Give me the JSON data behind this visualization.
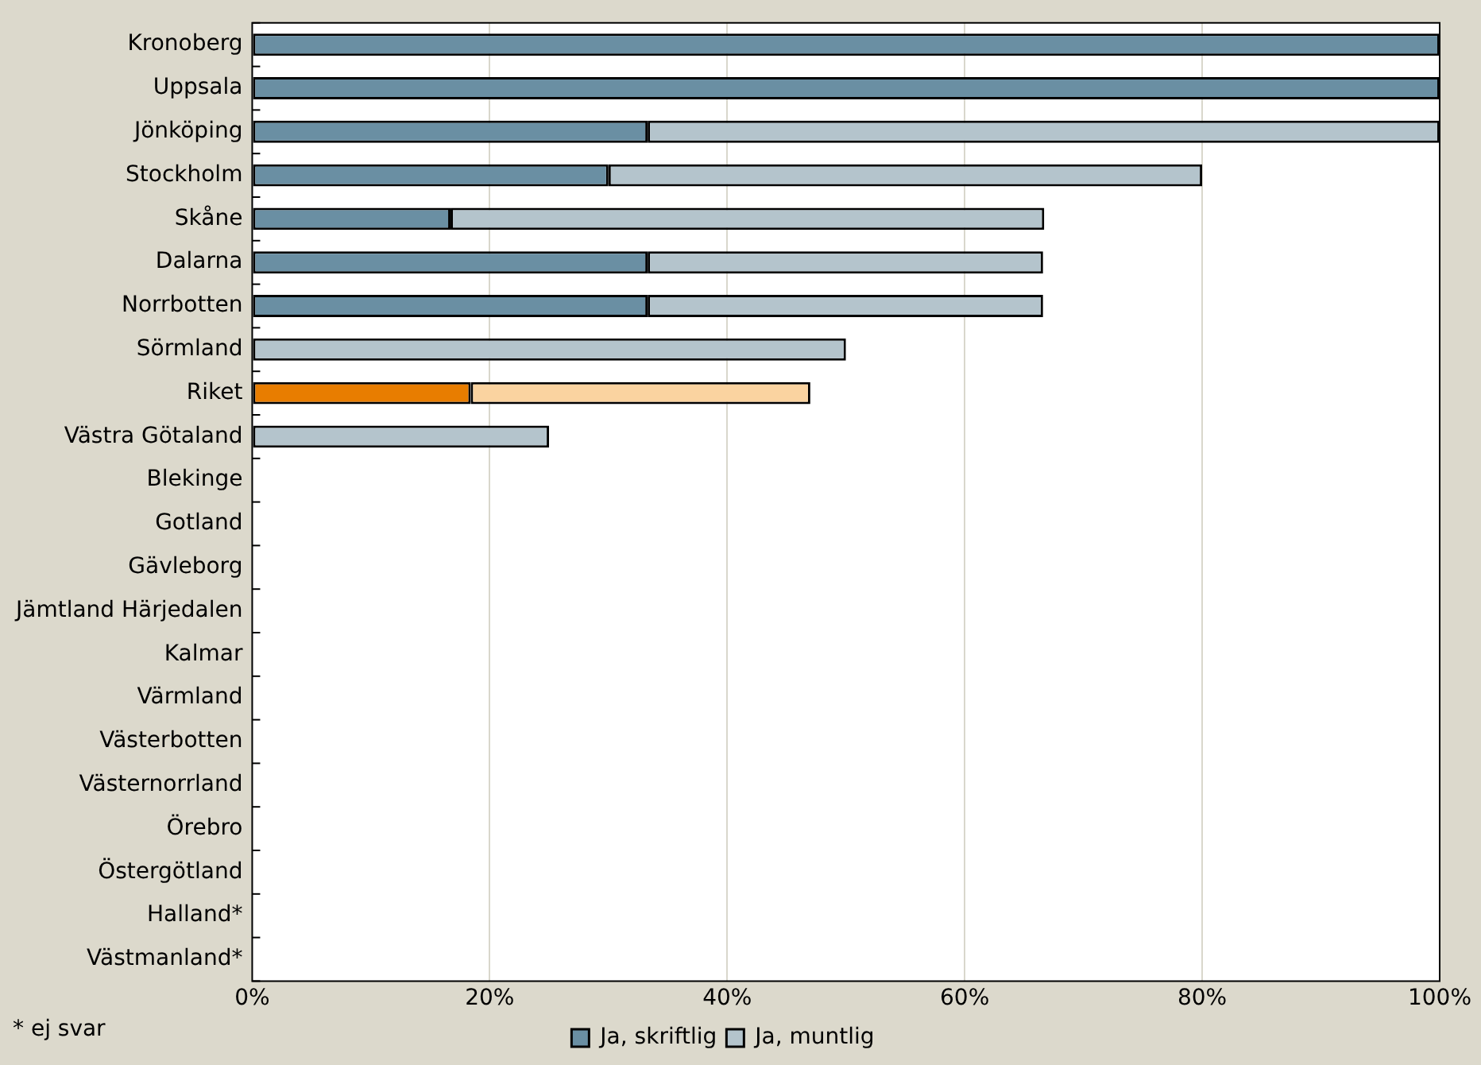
{
  "chart_data": {
    "type": "bar",
    "orientation": "horizontal",
    "stacked": true,
    "categories": [
      "Kronoberg",
      "Uppsala",
      "Jönköping",
      "Stockholm",
      "Skåne",
      "Dalarna",
      "Norrbotten",
      "Sörmland",
      "Riket",
      "Västra Götaland",
      "Blekinge",
      "Gotland",
      "Gävleborg",
      "Jämtland Härjedalen",
      "Kalmar",
      "Värmland",
      "Västerbotten",
      "Västernorrland",
      "Örebro",
      "Östergötland",
      "Halland*",
      "Västmanland*"
    ],
    "series": [
      {
        "name": "Ja, skriftlig",
        "color": "#6a8fa3",
        "colors": [
          "#6a8fa3",
          "#6a8fa3",
          "#6a8fa3",
          "#6a8fa3",
          "#6a8fa3",
          "#6a8fa3",
          "#6a8fa3",
          "#6a8fa3",
          "#e87d00",
          "#6a8fa3",
          "#6a8fa3",
          "#6a8fa3",
          "#6a8fa3",
          "#6a8fa3",
          "#6a8fa3",
          "#6a8fa3",
          "#6a8fa3",
          "#6a8fa3",
          "#6a8fa3",
          "#6a8fa3",
          "#6a8fa3",
          "#6a8fa3"
        ],
        "values": [
          100,
          100,
          33.3,
          30,
          16.7,
          33.3,
          33.3,
          0,
          18.4,
          0,
          0,
          0,
          0,
          0,
          0,
          0,
          0,
          0,
          0,
          0,
          null,
          null
        ]
      },
      {
        "name": "Ja, muntlig",
        "color": "#b4c4cc",
        "colors": [
          "#b4c4cc",
          "#b4c4cc",
          "#b4c4cc",
          "#b4c4cc",
          "#b4c4cc",
          "#b4c4cc",
          "#b4c4cc",
          "#b4c4cc",
          "#fad3a0",
          "#b4c4cc",
          "#b4c4cc",
          "#b4c4cc",
          "#b4c4cc",
          "#b4c4cc",
          "#b4c4cc",
          "#b4c4cc",
          "#b4c4cc",
          "#b4c4cc",
          "#b4c4cc",
          "#b4c4cc",
          "#b4c4cc",
          "#b4c4cc"
        ],
        "values": [
          0,
          0,
          66.7,
          50,
          50,
          33.3,
          33.3,
          50,
          28.6,
          25,
          0,
          0,
          0,
          0,
          0,
          0,
          0,
          0,
          0,
          0,
          null,
          null
        ]
      }
    ],
    "xlim": [
      0,
      100
    ],
    "xticks": [
      {
        "value": 0,
        "label": "0%"
      },
      {
        "value": 20,
        "label": "20%"
      },
      {
        "value": 40,
        "label": "40%"
      },
      {
        "value": 60,
        "label": "60%"
      },
      {
        "value": 80,
        "label": "80%"
      },
      {
        "value": 100,
        "label": "100%"
      }
    ],
    "grid": "x",
    "legend": "bottom",
    "annotations": [
      "* ej svar"
    ]
  }
}
